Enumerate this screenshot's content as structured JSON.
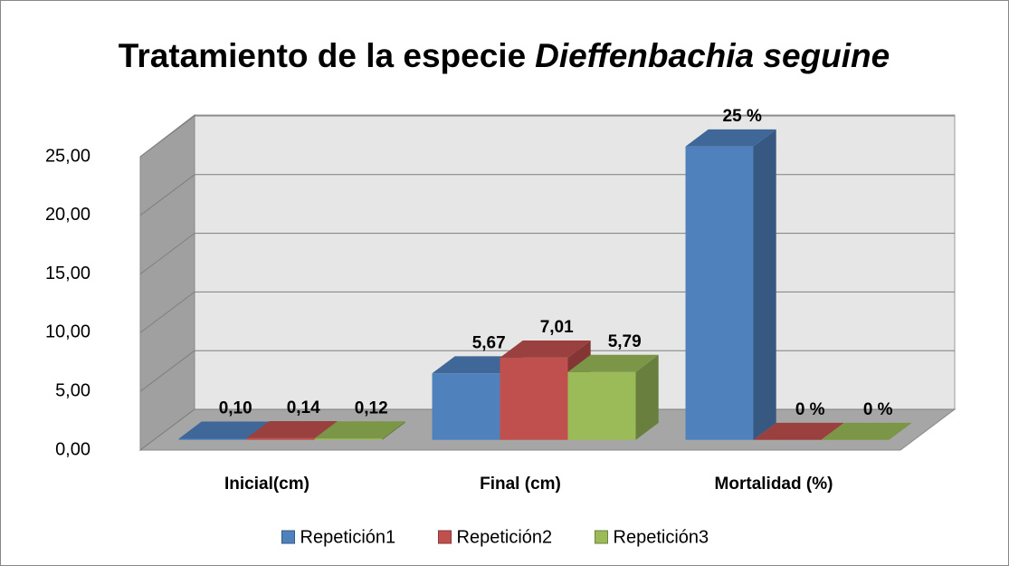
{
  "chart_data": {
    "type": "bar3d",
    "title": {
      "text": "Tratamiento de la especie",
      "species": "Dieffenbachia seguine"
    },
    "categories": [
      "Inicial(cm)",
      "Final (cm)",
      "Mortalidad (%)"
    ],
    "series": [
      {
        "name": "Repetición1",
        "color": "#4f81bd",
        "values": [
          0.1,
          5.67,
          25
        ],
        "value_labels": [
          "0,10",
          "5,67",
          "25 %"
        ]
      },
      {
        "name": "Repetición2",
        "color": "#c0504d",
        "values": [
          0.14,
          7.01,
          0
        ],
        "value_labels": [
          "0,14",
          "7,01",
          "0 %"
        ]
      },
      {
        "name": "Repetición3",
        "color": "#9bbb59",
        "values": [
          0.12,
          5.79,
          0
        ],
        "value_labels": [
          "0,12",
          "5,79",
          "0 %"
        ]
      }
    ],
    "ylim": [
      0,
      25
    ],
    "yticks": [
      {
        "value": 0,
        "label": "0,00"
      },
      {
        "value": 5,
        "label": "5,00"
      },
      {
        "value": 10,
        "label": "10,00"
      },
      {
        "value": 15,
        "label": "15,00"
      },
      {
        "value": 20,
        "label": "20,00"
      },
      {
        "value": 25,
        "label": "25,00"
      }
    ],
    "grid": true,
    "legend": "bottom"
  }
}
